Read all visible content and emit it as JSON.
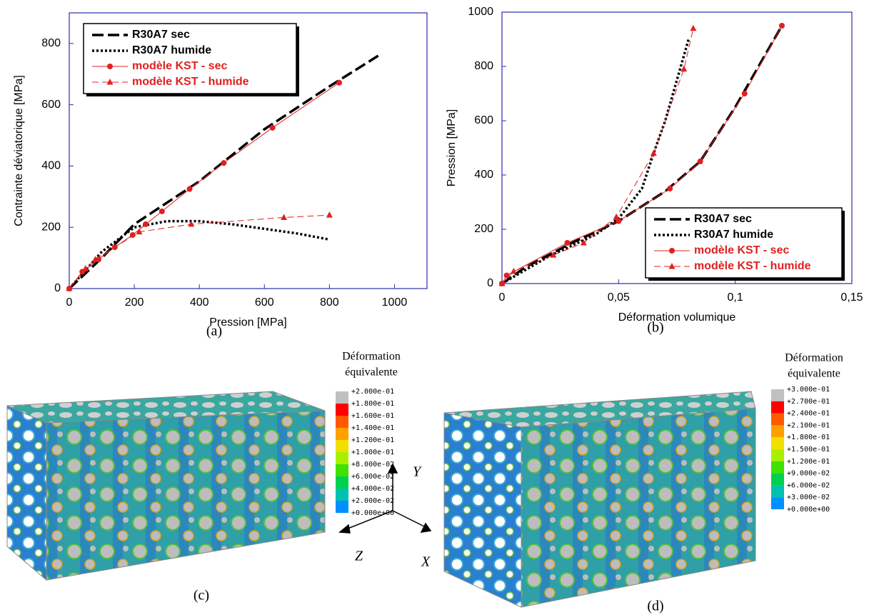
{
  "chart_data": [
    {
      "type": "line",
      "caption": "(a)",
      "x_label": "Pression [MPa]",
      "y_label": "Contrainte déviatorique [MPa]",
      "xlim": [
        0,
        1100
      ],
      "ylim": [
        0,
        900
      ],
      "xticks": [
        0,
        200,
        400,
        600,
        800,
        1000
      ],
      "yticks": [
        0,
        200,
        400,
        600,
        800
      ],
      "legend": "upper left",
      "series": [
        {
          "name": "R30A7 sec",
          "color": "#000000",
          "line_style": "dashed",
          "line_width": 3.5,
          "x": [
            0,
            100,
            200,
            400,
            600,
            800,
            950
          ],
          "values": [
            0,
            100,
            210,
            350,
            520,
            660,
            760
          ]
        },
        {
          "name": "R30A7 humide",
          "color": "#000000",
          "line_style": "dotted",
          "line_width": 3.5,
          "x": [
            0,
            100,
            150,
            200,
            300,
            400,
            500,
            600,
            700,
            800
          ],
          "values": [
            0,
            120,
            160,
            200,
            220,
            220,
            210,
            195,
            180,
            160
          ]
        },
        {
          "name": "modèle KST - sec",
          "color": "#e02020",
          "line_style": "solid",
          "line_width": 1,
          "marker": "circle",
          "x": [
            0,
            40,
            90,
            140,
            195,
            235,
            285,
            370,
            475,
            625,
            830
          ],
          "values": [
            0,
            55,
            95,
            135,
            175,
            210,
            252,
            325,
            410,
            525,
            672
          ]
        },
        {
          "name": "modèle KST - humide",
          "color": "#e02020",
          "line_style": "dashed",
          "line_width": 1,
          "marker": "triangle",
          "x": [
            0,
            50,
            80,
            215,
            375,
            660,
            800
          ],
          "values": [
            0,
            65,
            95,
            185,
            210,
            232,
            240
          ]
        }
      ]
    },
    {
      "type": "line",
      "caption": "(b)",
      "x_label": "Déformation volumique",
      "y_label": "Pression [MPa]",
      "xlim": [
        0,
        0.15
      ],
      "ylim": [
        0,
        1000
      ],
      "xticks": [
        0,
        {
          "value": 0.05,
          "label": "0,05"
        },
        {
          "value": 0.1,
          "label": "0,1"
        },
        {
          "value": 0.15,
          "label": "0,15"
        }
      ],
      "yticks": [
        0,
        200,
        400,
        600,
        800,
        1000
      ],
      "legend": "lower right",
      "series": [
        {
          "name": "R30A7 sec",
          "color": "#000000",
          "line_style": "dashed",
          "line_width": 3.5,
          "x": [
            0,
            0.01,
            0.03,
            0.05,
            0.07,
            0.085,
            0.1,
            0.11,
            0.12
          ],
          "values": [
            0,
            60,
            150,
            230,
            340,
            450,
            650,
            800,
            950
          ]
        },
        {
          "name": "R30A7 humide",
          "color": "#000000",
          "line_style": "dotted",
          "line_width": 3.5,
          "x": [
            0,
            0.02,
            0.04,
            0.05,
            0.06,
            0.065,
            0.07,
            0.075,
            0.08
          ],
          "values": [
            0,
            100,
            180,
            240,
            350,
            480,
            600,
            750,
            900
          ]
        },
        {
          "name": "modèle KST - sec",
          "color": "#e02020",
          "line_style": "solid",
          "line_width": 1,
          "marker": "circle",
          "x": [
            0,
            0.002,
            0.028,
            0.05,
            0.072,
            0.085,
            0.104,
            0.12
          ],
          "values": [
            0,
            30,
            150,
            230,
            350,
            450,
            700,
            950
          ]
        },
        {
          "name": "modèle KST - humide",
          "color": "#e02020",
          "line_style": "dashed",
          "line_width": 1,
          "marker": "triangle",
          "x": [
            0,
            0.005,
            0.022,
            0.035,
            0.049,
            0.065,
            0.078,
            0.082
          ],
          "values": [
            0,
            45,
            105,
            150,
            245,
            480,
            790,
            940
          ]
        }
      ]
    }
  ],
  "panels": [
    {
      "caption": "(c)",
      "legend_title": [
        "Déformation",
        "équivalente"
      ],
      "scale": [
        "+2.000e-01",
        "+1.800e-01",
        "+1.600e-01",
        "+1.400e-01",
        "+1.200e-01",
        "+1.000e-01",
        "+8.000e-02",
        "+6.000e-02",
        "+4.000e-02",
        "+2.000e-02",
        "+0.000e+00"
      ]
    },
    {
      "caption": "(d)",
      "legend_title": [
        "Déformation",
        "équivalente"
      ],
      "scale": [
        "+3.000e-01",
        "+2.700e-01",
        "+2.400e-01",
        "+2.100e-01",
        "+1.800e-01",
        "+1.500e-01",
        "+1.200e-01",
        "+9.000e-02",
        "+6.000e-02",
        "+3.000e-02",
        "+0.000e+00"
      ]
    }
  ],
  "axes_triad": {
    "y": "Y",
    "z": "Z",
    "x": "X"
  }
}
